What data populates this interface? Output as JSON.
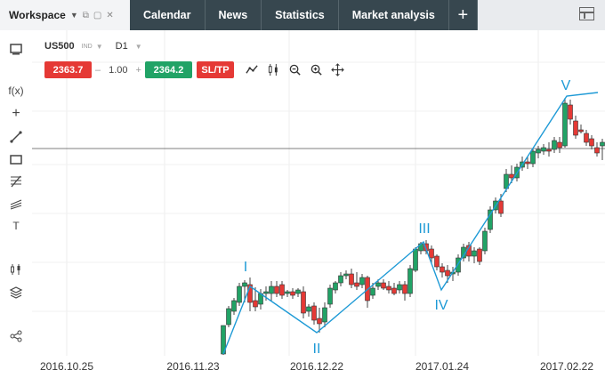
{
  "tabs": {
    "workspace": "Workspace",
    "items": [
      {
        "label": "Calendar"
      },
      {
        "label": "News"
      },
      {
        "label": "Statistics"
      },
      {
        "label": "Market analysis"
      }
    ],
    "add": "+"
  },
  "instrument": {
    "symbol": "US500",
    "type": "IND",
    "timeframe": "D1"
  },
  "trade": {
    "sell_price": "2363.7",
    "minus": "–",
    "volume": "1.00",
    "plus": "+",
    "buy_price": "2364.2",
    "sltp": "SL/TP"
  },
  "toolbar": {
    "fx_label": "f(x)",
    "cross_label": "+",
    "text_label": "T"
  },
  "colors": {
    "bull": "#21a366",
    "bear": "#e53935",
    "wave": "#1e9ad6",
    "tab_bg": "#37474f"
  },
  "chart_data": {
    "type": "candlestick",
    "x_labels": [
      "2016.10.25",
      "2016.11.23",
      "2016.12.22",
      "2017.01.24",
      "2017.02.22"
    ],
    "waves": [
      "I",
      "II",
      "III",
      "IV",
      "V"
    ]
  }
}
